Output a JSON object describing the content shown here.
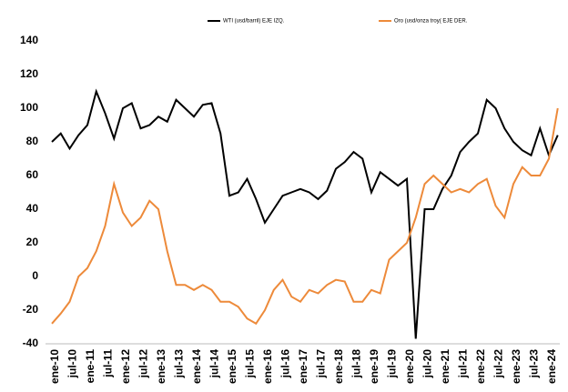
{
  "chart_data": {
    "type": "line",
    "categories": [
      "ene-10",
      null,
      "jul-10",
      null,
      "ene-11",
      null,
      "jul-11",
      null,
      "ene-12",
      null,
      "jul-12",
      null,
      "ene-13",
      null,
      "jul-13",
      null,
      "ene-14",
      null,
      "jul-14",
      null,
      "ene-15",
      null,
      "jul-15",
      null,
      "ene-16",
      null,
      "jul-16",
      null,
      "ene-17",
      null,
      "jul-17",
      null,
      "ene-18",
      null,
      "jul-18",
      null,
      "ene-19",
      null,
      "jul-19",
      null,
      "ene-20",
      null,
      "jul-20",
      null,
      "ene-21",
      null,
      "jul-21",
      null,
      "ene-22",
      null,
      "jul-22",
      null,
      "ene-23",
      null,
      "jul-23",
      null,
      "ene-24",
      null
    ],
    "series": [
      {
        "name": "WTI (usd/barril) EJE IZQ.",
        "color": "#000000",
        "values": [
          80,
          85,
          76,
          84,
          90,
          110,
          97,
          82,
          100,
          103,
          88,
          90,
          95,
          92,
          105,
          100,
          95,
          102,
          103,
          85,
          48,
          50,
          58,
          46,
          32,
          40,
          48,
          50,
          52,
          50,
          46,
          51,
          64,
          68,
          74,
          70,
          50,
          62,
          58,
          54,
          58,
          -37,
          40,
          40,
          52,
          60,
          74,
          80,
          85,
          105,
          100,
          88,
          80,
          75,
          72,
          88,
          72,
          84
        ]
      },
      {
        "name": "Oro (usd/onza troy( EJE DER.",
        "color": "#ed8a3a",
        "values": [
          -28,
          -22,
          -15,
          0,
          5,
          15,
          30,
          55,
          38,
          30,
          35,
          45,
          40,
          15,
          -5,
          -5,
          -8,
          -5,
          -8,
          -15,
          -15,
          -18,
          -25,
          -28,
          -20,
          -8,
          -2,
          -12,
          -15,
          -8,
          -10,
          -5,
          -2,
          -3,
          -15,
          -15,
          -8,
          -10,
          10,
          15,
          20,
          35,
          55,
          60,
          55,
          50,
          52,
          50,
          55,
          58,
          42,
          35,
          55,
          65,
          60,
          60,
          70,
          100
        ]
      }
    ],
    "ylim": [
      -40,
      140
    ],
    "yticks": [
      -40,
      -20,
      0,
      20,
      40,
      60,
      80,
      100,
      120,
      140
    ],
    "grid": false
  }
}
